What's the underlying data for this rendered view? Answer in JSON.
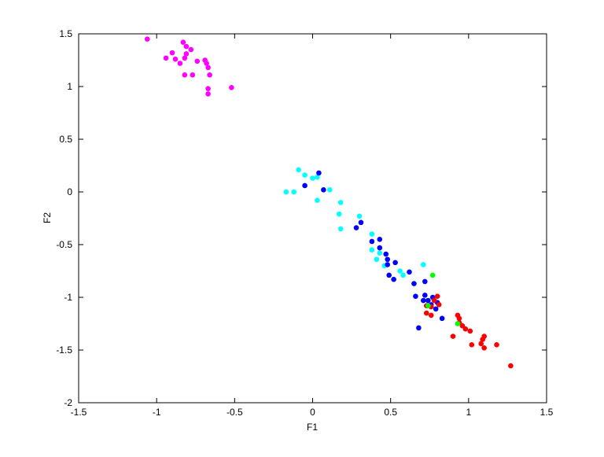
{
  "chart_data": {
    "type": "scatter",
    "title": "",
    "xlabel": "F1",
    "ylabel": "F2",
    "xlim": [
      -1.5,
      1.5
    ],
    "ylim": [
      -2,
      1.5
    ],
    "grid": false,
    "legend": null,
    "x_ticks": [
      -1.5,
      -1,
      -0.5,
      0,
      0.5,
      1,
      1.5
    ],
    "x_tick_labels": [
      "-1.5",
      "-1",
      "-0.5",
      "0",
      "0.5",
      "1",
      "1.5"
    ],
    "y_ticks": [
      -2,
      -1.5,
      -1,
      -0.5,
      0,
      0.5,
      1,
      1.5
    ],
    "y_tick_labels": [
      "-2",
      "-1.5",
      "-1",
      "-0.5",
      "0",
      "0.5",
      "1",
      "1.5"
    ],
    "series": [
      {
        "color": "#ff00ff",
        "points": [
          [
            -1.06,
            1.45
          ],
          [
            -0.83,
            1.42
          ],
          [
            -0.81,
            1.38
          ],
          [
            -0.78,
            1.35
          ],
          [
            -0.9,
            1.32
          ],
          [
            -0.81,
            1.31
          ],
          [
            -0.94,
            1.27
          ],
          [
            -0.88,
            1.26
          ],
          [
            -0.82,
            1.27
          ],
          [
            -0.74,
            1.24
          ],
          [
            -0.69,
            1.25
          ],
          [
            -0.68,
            1.22
          ],
          [
            -0.85,
            1.22
          ],
          [
            -0.67,
            1.18
          ],
          [
            -0.82,
            1.11
          ],
          [
            -0.77,
            1.11
          ],
          [
            -0.66,
            1.11
          ],
          [
            -0.52,
            0.99
          ],
          [
            -0.67,
            0.98
          ],
          [
            -0.67,
            0.93
          ]
        ]
      },
      {
        "color": "#00ffff",
        "points": [
          [
            -0.09,
            0.21
          ],
          [
            -0.05,
            0.16
          ],
          [
            0.03,
            0.14
          ],
          [
            0.0,
            0.13
          ],
          [
            0.11,
            0.02
          ],
          [
            -0.17,
            0.0
          ],
          [
            -0.12,
            0.0
          ],
          [
            0.03,
            -0.08
          ],
          [
            0.18,
            -0.1
          ],
          [
            0.17,
            -0.21
          ],
          [
            0.3,
            -0.23
          ],
          [
            0.18,
            -0.35
          ],
          [
            0.38,
            -0.4
          ],
          [
            0.38,
            -0.55
          ],
          [
            0.43,
            -0.58
          ],
          [
            0.41,
            -0.64
          ],
          [
            0.46,
            -0.7
          ],
          [
            0.71,
            -0.69
          ],
          [
            0.56,
            -0.75
          ],
          [
            0.58,
            -0.79
          ]
        ]
      },
      {
        "color": "#0000ff",
        "points": [
          [
            0.04,
            0.18
          ],
          [
            -0.05,
            0.06
          ],
          [
            0.07,
            0.02
          ],
          [
            0.31,
            -0.29
          ],
          [
            0.28,
            -0.34
          ],
          [
            0.43,
            -0.45
          ],
          [
            0.38,
            -0.47
          ],
          [
            0.43,
            -0.53
          ],
          [
            0.47,
            -0.59
          ],
          [
            0.48,
            -0.64
          ],
          [
            0.53,
            -0.67
          ],
          [
            0.48,
            -0.69
          ],
          [
            0.62,
            -0.76
          ],
          [
            0.49,
            -0.79
          ],
          [
            0.52,
            -0.83
          ],
          [
            0.72,
            -0.85
          ],
          [
            0.65,
            -0.87
          ],
          [
            0.72,
            -0.98
          ],
          [
            0.66,
            -0.99
          ],
          [
            0.77,
            -1.0
          ],
          [
            0.71,
            -1.03
          ],
          [
            0.74,
            -1.03
          ],
          [
            0.8,
            -1.05
          ],
          [
            0.76,
            -1.07
          ],
          [
            0.79,
            -1.11
          ],
          [
            0.83,
            -1.2
          ],
          [
            0.68,
            -1.29
          ]
        ]
      },
      {
        "color": "#ff0000",
        "points": [
          [
            0.8,
            -0.99
          ],
          [
            0.78,
            -1.03
          ],
          [
            0.81,
            -1.07
          ],
          [
            0.73,
            -1.08
          ],
          [
            0.76,
            -1.09
          ],
          [
            0.73,
            -1.15
          ],
          [
            0.76,
            -1.17
          ],
          [
            0.93,
            -1.17
          ],
          [
            0.94,
            -1.2
          ],
          [
            0.94,
            -1.24
          ],
          [
            0.96,
            -1.27
          ],
          [
            0.98,
            -1.3
          ],
          [
            1.01,
            -1.32
          ],
          [
            0.9,
            -1.37
          ],
          [
            1.1,
            -1.37
          ],
          [
            1.09,
            -1.4
          ],
          [
            1.08,
            -1.44
          ],
          [
            1.02,
            -1.45
          ],
          [
            1.18,
            -1.45
          ],
          [
            1.1,
            -1.48
          ],
          [
            1.27,
            -1.65
          ]
        ]
      },
      {
        "color": "#00ff00",
        "points": [
          [
            0.77,
            -0.79
          ],
          [
            0.74,
            -1.08
          ],
          [
            0.93,
            -1.25
          ]
        ]
      }
    ]
  }
}
